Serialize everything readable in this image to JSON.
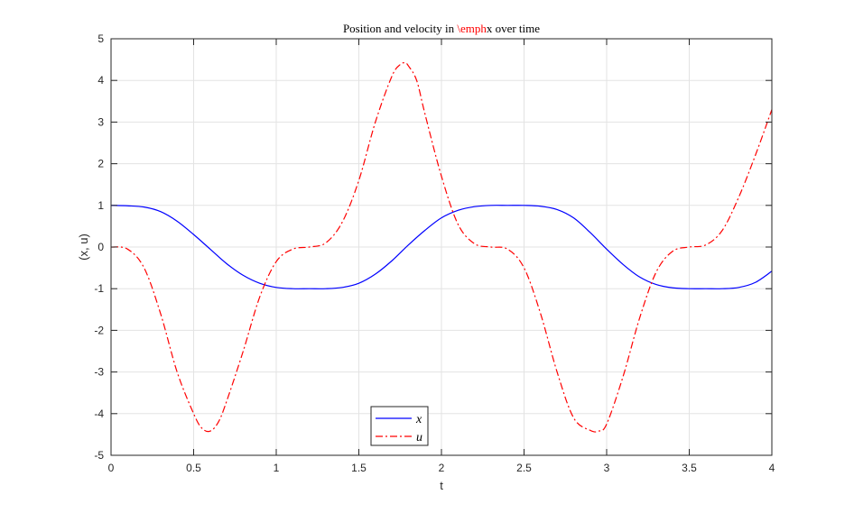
{
  "chart_data": {
    "type": "line",
    "title_parts": [
      {
        "text": "Position and velocity in ",
        "color": "#000000"
      },
      {
        "text": "\\emph",
        "color": "#ff0000"
      },
      {
        "text": "x over time",
        "color": "#000000"
      }
    ],
    "xlabel": "t",
    "ylabel": "(x, u)",
    "xlim": [
      0,
      4
    ],
    "ylim": [
      -5,
      5
    ],
    "xticks": [
      0,
      0.5,
      1,
      1.5,
      2,
      2.5,
      3,
      3.5,
      4
    ],
    "xtick_labels": [
      "0",
      "0.5",
      "1",
      "1.5",
      "2",
      "2.5",
      "3",
      "3.5",
      "4"
    ],
    "yticks": [
      -5,
      -4,
      -3,
      -2,
      -1,
      0,
      1,
      2,
      3,
      4,
      5
    ],
    "ytick_labels": [
      "-5",
      "-4",
      "-3",
      "-2",
      "-1",
      "0",
      "1",
      "2",
      "3",
      "4",
      "5"
    ],
    "grid": true,
    "legend_placement": "bottom-center",
    "series": [
      {
        "name": "x",
        "color": "#0000ff",
        "style": "solid",
        "x": [
          0,
          0.1,
          0.2,
          0.3,
          0.4,
          0.5,
          0.6,
          0.7,
          0.8,
          0.9,
          1.0,
          1.1,
          1.2,
          1.3,
          1.4,
          1.5,
          1.6,
          1.7,
          1.8,
          1.9,
          2.0,
          2.1,
          2.2,
          2.3,
          2.4,
          2.5,
          2.6,
          2.7,
          2.8,
          2.9,
          3.0,
          3.1,
          3.2,
          3.3,
          3.4,
          3.5,
          3.6,
          3.7,
          3.8,
          3.9,
          4.0
        ],
        "y": [
          1.0,
          0.99,
          0.96,
          0.85,
          0.62,
          0.3,
          -0.05,
          -0.4,
          -0.68,
          -0.87,
          -0.97,
          -1.0,
          -1.0,
          -1.0,
          -0.97,
          -0.87,
          -0.65,
          -0.33,
          0.05,
          0.4,
          0.7,
          0.88,
          0.97,
          1.0,
          1.0,
          1.0,
          0.98,
          0.9,
          0.7,
          0.35,
          -0.05,
          -0.42,
          -0.72,
          -0.9,
          -0.98,
          -1.0,
          -1.0,
          -1.0,
          -0.97,
          -0.85,
          -0.58
        ]
      },
      {
        "name": "u",
        "color": "#ff0000",
        "style": "dashdot",
        "x": [
          0,
          0.1,
          0.2,
          0.3,
          0.4,
          0.5,
          0.55,
          0.6,
          0.65,
          0.7,
          0.8,
          0.9,
          1.0,
          1.1,
          1.2,
          1.3,
          1.4,
          1.5,
          1.6,
          1.7,
          1.75,
          1.78,
          1.8,
          1.85,
          1.9,
          2.0,
          2.1,
          2.2,
          2.3,
          2.4,
          2.5,
          2.6,
          2.7,
          2.8,
          2.9,
          2.95,
          3.0,
          3.1,
          3.2,
          3.3,
          3.4,
          3.5,
          3.6,
          3.7,
          3.8,
          3.9,
          4.0
        ],
        "y": [
          0.0,
          -0.05,
          -0.5,
          -1.6,
          -3.0,
          -4.0,
          -4.35,
          -4.42,
          -4.2,
          -3.7,
          -2.5,
          -1.2,
          -0.35,
          -0.05,
          0.0,
          0.1,
          0.6,
          1.6,
          3.0,
          4.1,
          4.38,
          4.42,
          4.35,
          4.0,
          3.2,
          1.7,
          0.55,
          0.08,
          0.0,
          -0.05,
          -0.5,
          -1.6,
          -3.0,
          -4.1,
          -4.4,
          -4.42,
          -4.25,
          -3.1,
          -1.7,
          -0.6,
          -0.1,
          0.0,
          0.05,
          0.4,
          1.2,
          2.2,
          3.3
        ]
      }
    ]
  }
}
